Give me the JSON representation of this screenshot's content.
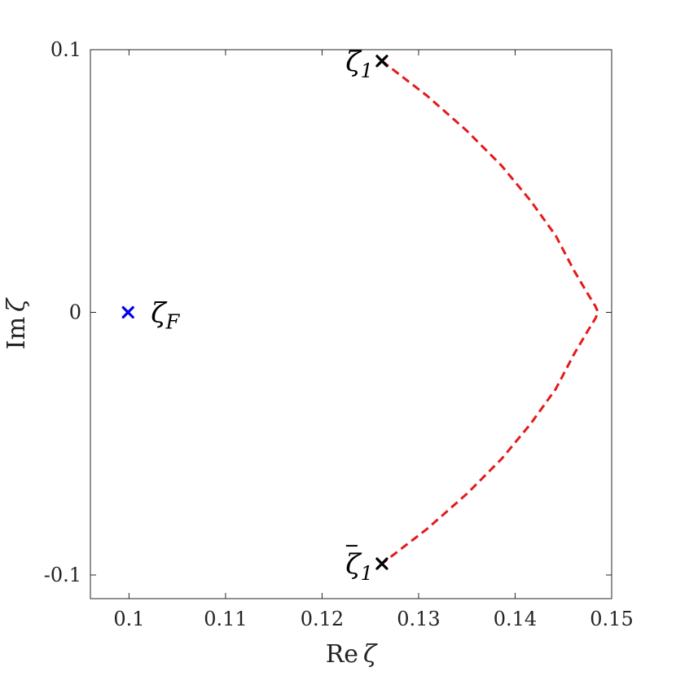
{
  "chart_data": {
    "type": "scatter",
    "title": "",
    "xlabel": {
      "prefix": "Re",
      "variable": "ζ"
    },
    "ylabel": {
      "prefix": "Im",
      "variable": "ζ"
    },
    "xlim": [
      0.096,
      0.15
    ],
    "ylim": [
      -0.109,
      0.1
    ],
    "grid": false,
    "xticks": [
      {
        "value": 0.1,
        "label": "0.1"
      },
      {
        "value": 0.11,
        "label": "0.11"
      },
      {
        "value": 0.12,
        "label": "0.12"
      },
      {
        "value": 0.13,
        "label": "0.13"
      },
      {
        "value": 0.14,
        "label": "0.14"
      },
      {
        "value": 0.15,
        "label": "0.15"
      }
    ],
    "yticks": [
      {
        "value": 0.1,
        "label": "0.1"
      },
      {
        "value": 0.0,
        "label": "0"
      },
      {
        "value": -0.1,
        "label": "-0.1"
      }
    ],
    "points": [
      {
        "x": 0.0999,
        "y": 0.0,
        "color": "#0000ee",
        "marker": "x",
        "label": "ζ",
        "sub": "F",
        "bar": false,
        "label_side": "right"
      },
      {
        "x": 0.1262,
        "y": 0.0957,
        "color": "#000000",
        "marker": "x",
        "label": "ζ",
        "sub": "1",
        "bar": false,
        "label_side": "left"
      },
      {
        "x": 0.1262,
        "y": -0.0957,
        "color": "#000000",
        "marker": "x",
        "label": "ζ",
        "sub": "1",
        "bar": true,
        "label_side": "left"
      }
    ],
    "curve": {
      "style": "dashed",
      "color": "#e41a1c",
      "x": [
        0.1262,
        0.1309,
        0.135,
        0.1386,
        0.1416,
        0.1442,
        0.1461,
        0.1475,
        0.1483,
        0.1486,
        0.1483,
        0.1475,
        0.1461,
        0.1442,
        0.1416,
        0.1386,
        0.135,
        0.1309,
        0.1262
      ],
      "y": [
        0.0957,
        0.0824,
        0.0691,
        0.0558,
        0.0425,
        0.0292,
        0.0159,
        0.0072,
        0.0024,
        0.0,
        -0.0024,
        -0.0072,
        -0.0159,
        -0.0292,
        -0.0425,
        -0.0558,
        -0.0691,
        -0.0824,
        -0.0957
      ]
    }
  }
}
